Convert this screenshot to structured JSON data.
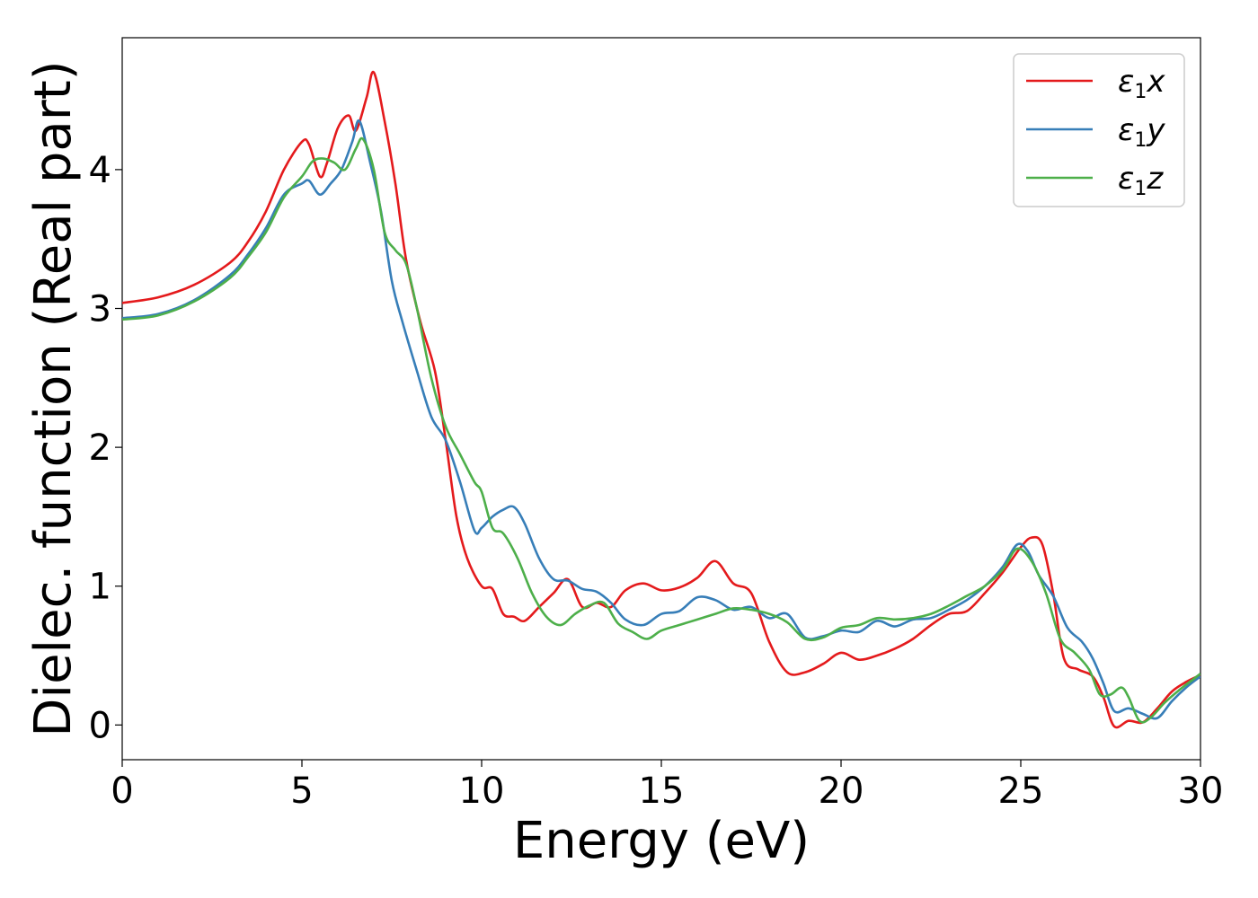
{
  "chart_data": {
    "type": "line",
    "xlabel": "Energy (eV)",
    "ylabel": "Dielec. function (Real part)",
    "xlim": [
      0,
      30
    ],
    "ylim": [
      -0.25,
      4.95
    ],
    "xticks": [
      0,
      5,
      10,
      15,
      20,
      25,
      30
    ],
    "yticks": [
      0,
      1,
      2,
      3,
      4
    ],
    "grid": false,
    "legend_position": "top-right",
    "series": [
      {
        "name": "ε1x",
        "symbol": "ε",
        "subscript": "1",
        "component": "x",
        "color": "#e41a1c",
        "x": [
          0,
          1,
          2,
          3,
          3.5,
          4,
          4.5,
          5.0,
          5.2,
          5.5,
          5.7,
          6.0,
          6.3,
          6.5,
          6.8,
          7.0,
          7.3,
          7.6,
          7.9,
          8.3,
          8.7,
          9.0,
          9.3,
          9.6,
          10.0,
          10.3,
          10.6,
          10.9,
          11.2,
          11.6,
          12.0,
          12.4,
          12.8,
          13.2,
          13.6,
          14.0,
          14.5,
          15.0,
          15.5,
          16.0,
          16.5,
          17.0,
          17.5,
          18.0,
          18.5,
          19.0,
          19.5,
          20.0,
          20.5,
          21.0,
          21.5,
          22.0,
          22.5,
          23.0,
          23.5,
          24.0,
          24.5,
          25.0,
          25.3,
          25.6,
          25.9,
          26.2,
          26.6,
          27.0,
          27.3,
          27.6,
          28.0,
          28.4,
          28.8,
          29.2,
          29.6,
          30.0
        ],
        "y": [
          3.04,
          3.08,
          3.17,
          3.33,
          3.48,
          3.7,
          4.0,
          4.2,
          4.18,
          3.95,
          4.05,
          4.3,
          4.39,
          4.28,
          4.52,
          4.7,
          4.35,
          3.9,
          3.35,
          2.9,
          2.55,
          2.05,
          1.5,
          1.2,
          1.0,
          0.98,
          0.8,
          0.78,
          0.75,
          0.85,
          0.95,
          1.05,
          0.85,
          0.88,
          0.85,
          0.97,
          1.02,
          0.97,
          0.99,
          1.06,
          1.18,
          1.02,
          0.95,
          0.6,
          0.38,
          0.38,
          0.44,
          0.52,
          0.47,
          0.5,
          0.55,
          0.62,
          0.72,
          0.8,
          0.82,
          0.95,
          1.1,
          1.28,
          1.35,
          1.3,
          0.95,
          0.48,
          0.4,
          0.35,
          0.2,
          -0.01,
          0.03,
          0.02,
          0.12,
          0.24,
          0.31,
          0.36
        ]
      },
      {
        "name": "ε1y",
        "symbol": "ε",
        "subscript": "1",
        "component": "y",
        "color": "#377eb8",
        "x": [
          0,
          1,
          2,
          3,
          3.5,
          4,
          4.5,
          5.0,
          5.2,
          5.5,
          5.8,
          6.1,
          6.4,
          6.6,
          6.9,
          7.2,
          7.5,
          7.8,
          8.2,
          8.6,
          9.0,
          9.4,
          9.8,
          10.0,
          10.3,
          10.6,
          10.9,
          11.2,
          11.6,
          12.0,
          12.4,
          12.8,
          13.2,
          13.6,
          14.0,
          14.5,
          15.0,
          15.5,
          16.0,
          16.5,
          17.0,
          17.5,
          18.0,
          18.5,
          19.0,
          19.5,
          20.0,
          20.5,
          21.0,
          21.5,
          22.0,
          22.5,
          23.0,
          23.5,
          24.0,
          24.5,
          24.9,
          25.2,
          25.5,
          25.9,
          26.3,
          26.7,
          27.0,
          27.3,
          27.6,
          28.0,
          28.4,
          28.8,
          29.2,
          29.6,
          30.0
        ],
        "y": [
          2.93,
          2.96,
          3.06,
          3.24,
          3.39,
          3.58,
          3.82,
          3.9,
          3.92,
          3.82,
          3.9,
          4.0,
          4.2,
          4.35,
          4.05,
          3.7,
          3.2,
          2.9,
          2.55,
          2.22,
          2.05,
          1.75,
          1.4,
          1.42,
          1.5,
          1.55,
          1.57,
          1.45,
          1.2,
          1.05,
          1.04,
          0.98,
          0.96,
          0.88,
          0.76,
          0.72,
          0.8,
          0.82,
          0.92,
          0.9,
          0.83,
          0.85,
          0.77,
          0.8,
          0.63,
          0.64,
          0.68,
          0.67,
          0.75,
          0.71,
          0.76,
          0.77,
          0.83,
          0.9,
          1.0,
          1.14,
          1.3,
          1.25,
          1.08,
          0.93,
          0.7,
          0.6,
          0.48,
          0.3,
          0.1,
          0.12,
          0.08,
          0.05,
          0.17,
          0.27,
          0.35
        ]
      },
      {
        "name": "ε1z",
        "symbol": "ε",
        "subscript": "1",
        "component": "z",
        "color": "#4daf4a",
        "x": [
          0,
          1,
          2,
          3,
          3.5,
          4,
          4.5,
          5.0,
          5.3,
          5.6,
          5.9,
          6.2,
          6.5,
          6.7,
          7.0,
          7.3,
          7.6,
          7.9,
          8.2,
          8.6,
          9.0,
          9.4,
          9.8,
          10.0,
          10.3,
          10.6,
          11.0,
          11.4,
          11.8,
          12.2,
          12.6,
          13.0,
          13.4,
          13.8,
          14.2,
          14.6,
          15.0,
          15.5,
          16.0,
          16.5,
          17.0,
          17.5,
          18.0,
          18.5,
          19.0,
          19.5,
          20.0,
          20.5,
          21.0,
          21.5,
          22.0,
          22.5,
          23.0,
          23.5,
          24.0,
          24.5,
          24.9,
          25.3,
          25.7,
          26.1,
          26.5,
          26.9,
          27.2,
          27.5,
          27.8,
          28.0,
          28.3,
          28.6,
          29.0,
          29.4,
          29.8,
          30.0
        ],
        "y": [
          2.92,
          2.95,
          3.05,
          3.22,
          3.37,
          3.55,
          3.8,
          3.95,
          4.06,
          4.08,
          4.05,
          4.0,
          4.15,
          4.22,
          4.0,
          3.55,
          3.42,
          3.32,
          3.0,
          2.5,
          2.15,
          1.95,
          1.75,
          1.68,
          1.42,
          1.38,
          1.2,
          0.95,
          0.78,
          0.72,
          0.8,
          0.86,
          0.88,
          0.73,
          0.67,
          0.62,
          0.68,
          0.72,
          0.76,
          0.8,
          0.84,
          0.83,
          0.8,
          0.74,
          0.62,
          0.63,
          0.7,
          0.72,
          0.77,
          0.76,
          0.77,
          0.8,
          0.86,
          0.93,
          1.0,
          1.12,
          1.27,
          1.18,
          0.95,
          0.62,
          0.52,
          0.4,
          0.22,
          0.22,
          0.27,
          0.2,
          0.03,
          0.05,
          0.16,
          0.25,
          0.33,
          0.37
        ]
      }
    ]
  }
}
